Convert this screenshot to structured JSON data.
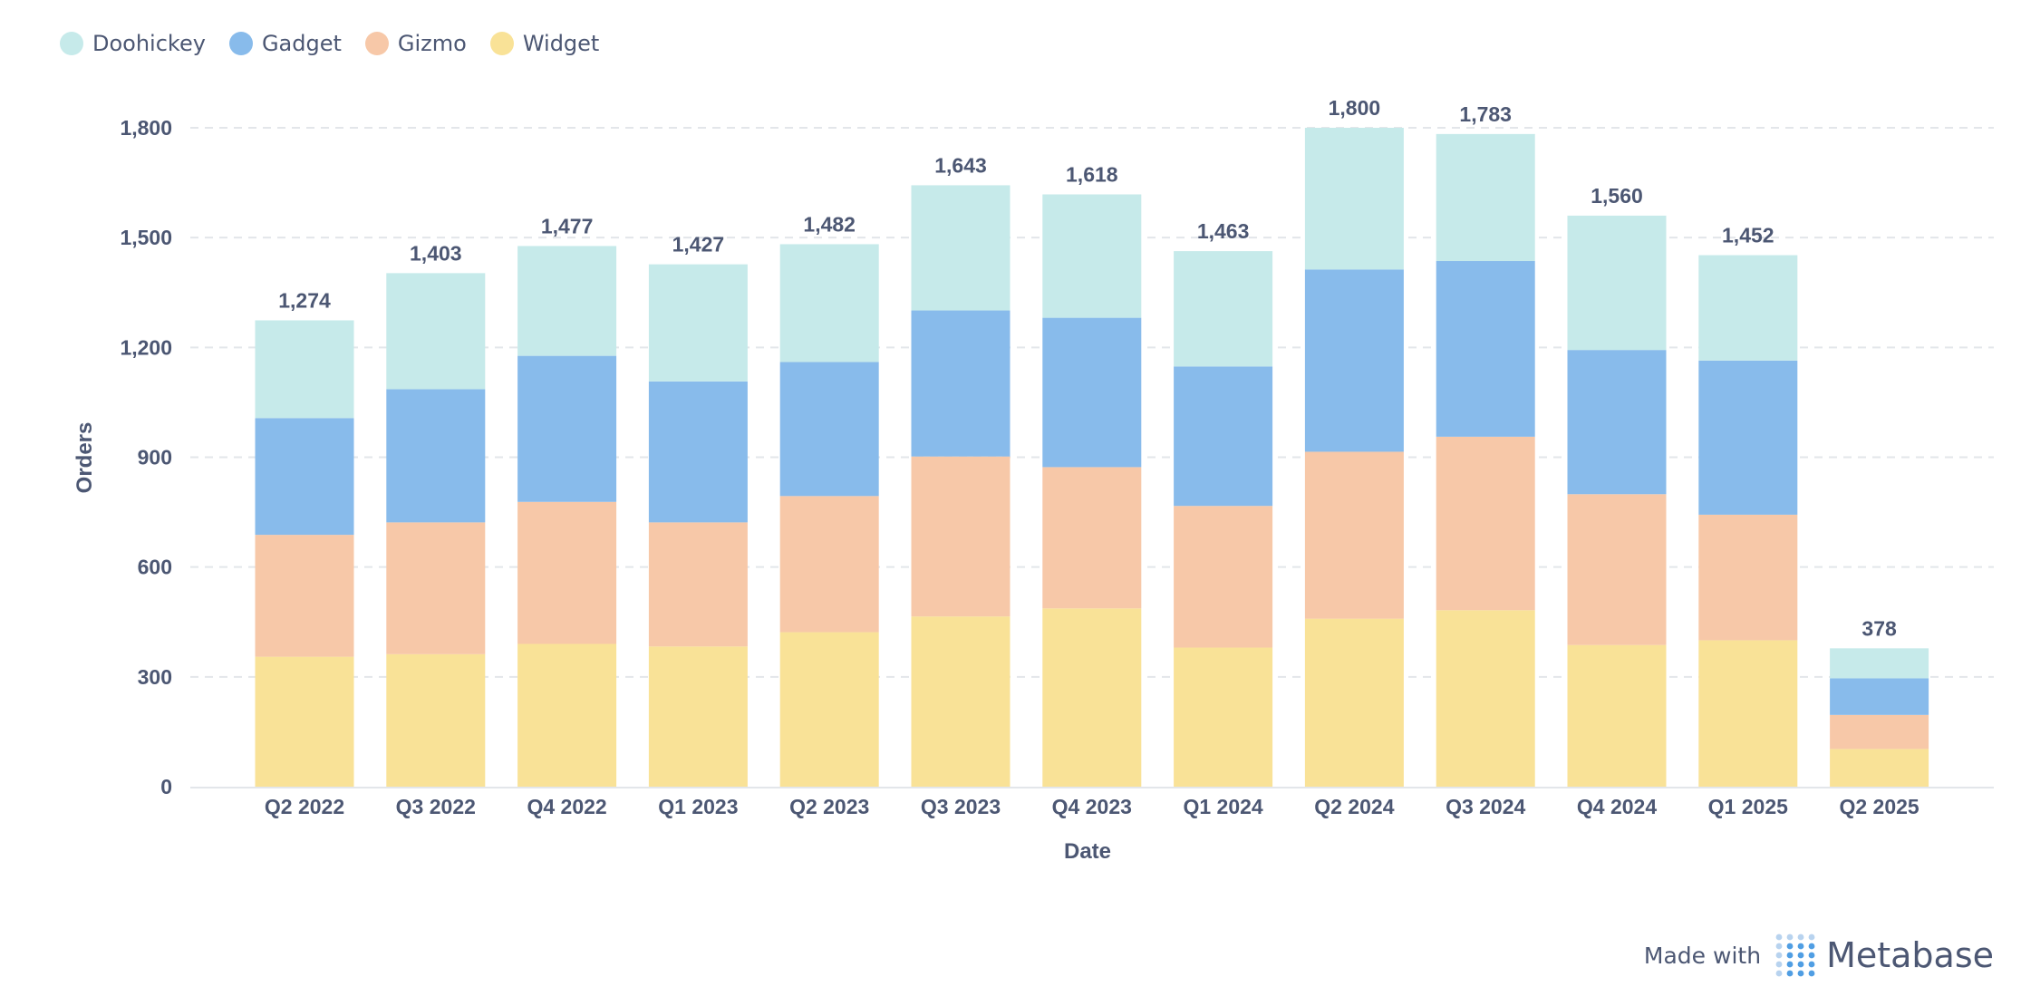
{
  "chart_data": {
    "type": "bar",
    "stacked": true,
    "categories": [
      "Q2 2022",
      "Q3 2022",
      "Q4 2022",
      "Q1 2023",
      "Q2 2023",
      "Q3 2023",
      "Q4 2023",
      "Q1 2024",
      "Q2 2024",
      "Q3 2024",
      "Q4 2024",
      "Q1 2025",
      "Q2 2025"
    ],
    "series": [
      {
        "name": "Widget",
        "color": "#f9e297",
        "values": [
          355,
          362,
          390,
          383,
          422,
          465,
          487,
          380,
          459,
          482,
          387,
          400,
          103
        ]
      },
      {
        "name": "Gizmo",
        "color": "#f7c8a8",
        "values": [
          333,
          360,
          388,
          339,
          372,
          437,
          386,
          387,
          456,
          474,
          412,
          343,
          93
        ]
      },
      {
        "name": "Gadget",
        "color": "#88bbeb",
        "values": [
          319,
          364,
          399,
          385,
          366,
          399,
          408,
          381,
          498,
          480,
          394,
          421,
          100
        ]
      },
      {
        "name": "Doohickey",
        "color": "#c6eaea",
        "values": [
          267,
          317,
          300,
          320,
          322,
          342,
          337,
          315,
          387,
          347,
          367,
          288,
          82
        ]
      }
    ],
    "legend_order": [
      "Doohickey",
      "Gadget",
      "Gizmo",
      "Widget"
    ],
    "totals": [
      "1,274",
      "1,403",
      "1,477",
      "1,427",
      "1,482",
      "1,643",
      "1,618",
      "1,463",
      "1,800",
      "1,783",
      "1,560",
      "1,452",
      "378"
    ],
    "xlabel": "Date",
    "ylabel": "Orders",
    "ylim": [
      0,
      1800
    ],
    "yticks": [
      0,
      300,
      600,
      900,
      1200,
      1500,
      1800
    ],
    "ytick_labels": [
      "0",
      "300",
      "600",
      "900",
      "1,200",
      "1,500",
      "1,800"
    ],
    "grid": true,
    "legend_position": "top-left"
  },
  "footer": {
    "made_with": "Made with",
    "brand": "Metabase"
  }
}
